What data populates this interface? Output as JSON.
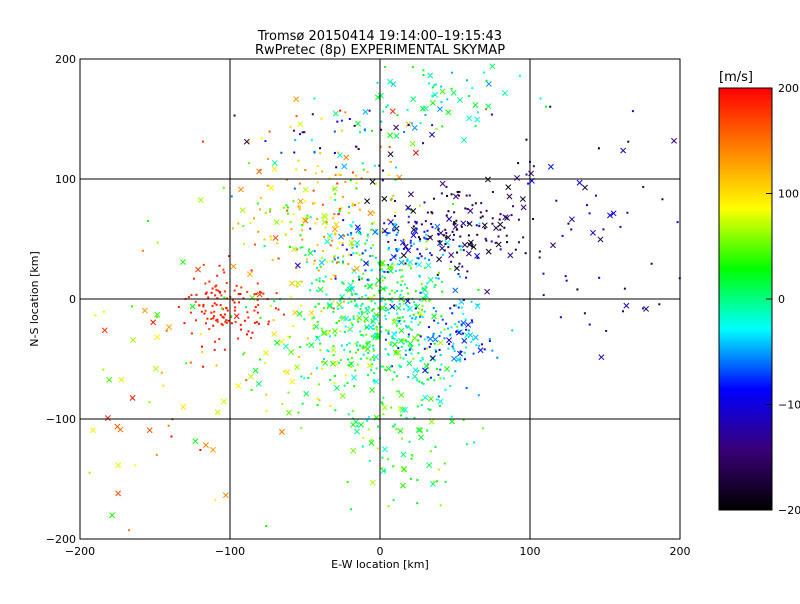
{
  "chart_data": {
    "type": "scatter",
    "title": "Tromsø 20150414 19:14:00–19:15:43",
    "subtitle": "RwPretec (8p) EXPERIMENTAL SKYMAP",
    "xlabel": "E-W location [km]",
    "ylabel": "N-S location [km]",
    "xlim": [
      -200,
      200
    ],
    "ylim": [
      -200,
      200
    ],
    "x_ticks": [
      -200,
      -100,
      0,
      100,
      200
    ],
    "y_ticks": [
      -200,
      -100,
      0,
      100,
      200
    ],
    "x_tick_labels": [
      "−200",
      "−100",
      "0",
      "100",
      "200"
    ],
    "y_tick_labels": [
      "−200",
      "−100",
      "0",
      "100",
      "200"
    ],
    "grid": true,
    "colorbar": {
      "unit": "[m/s]",
      "range": [
        -200,
        200
      ],
      "ticks": [
        200,
        100,
        0,
        -100,
        -200
      ],
      "tick_labels": [
        "200",
        "100",
        "0",
        "−100",
        "−200"
      ],
      "colors": [
        "#000000",
        "#3a0078",
        "#0000ff",
        "#00ffff",
        "#00ff00",
        "#ffff00",
        "#ff8000",
        "#ff0000"
      ]
    },
    "clusters": [
      {
        "x": 0,
        "y": -10,
        "sx": 25,
        "sy": 30,
        "n": 420,
        "vmin": -40,
        "vmax": 60,
        "cross_frac": 0.15
      },
      {
        "x": 40,
        "y": -30,
        "sx": 20,
        "sy": 20,
        "n": 120,
        "vmin": -110,
        "vmax": -20,
        "cross_frac": 0.15
      },
      {
        "x": 50,
        "y": 55,
        "sx": 25,
        "sy": 20,
        "n": 140,
        "vmin": -200,
        "vmax": -120,
        "cross_frac": 0.3
      },
      {
        "x": 5,
        "y": 45,
        "sx": 25,
        "sy": 15,
        "n": 110,
        "vmin": -100,
        "vmax": -20,
        "cross_frac": 0.2
      },
      {
        "x": -100,
        "y": -5,
        "sx": 15,
        "sy": 15,
        "n": 130,
        "vmin": 170,
        "vmax": 200,
        "cross_frac": 0.05
      },
      {
        "x": -40,
        "y": 60,
        "sx": 30,
        "sy": 25,
        "n": 170,
        "vmin": 30,
        "vmax": 170,
        "cross_frac": 0.15
      },
      {
        "x": -20,
        "y": 130,
        "sx": 35,
        "sy": 20,
        "n": 90,
        "vmin": -200,
        "vmax": 200,
        "cross_frac": 0.25
      },
      {
        "x": 40,
        "y": 170,
        "sx": 30,
        "sy": 20,
        "n": 70,
        "vmin": -60,
        "vmax": 40,
        "cross_frac": 0.4
      },
      {
        "x": 10,
        "y": -100,
        "sx": 25,
        "sy": 40,
        "n": 130,
        "vmin": -20,
        "vmax": 70,
        "cross_frac": 0.3
      },
      {
        "x": 130,
        "y": 60,
        "sx": 40,
        "sy": 50,
        "n": 70,
        "vmin": -200,
        "vmax": -80,
        "cross_frac": 0.3
      },
      {
        "x": -140,
        "y": -80,
        "sx": 40,
        "sy": 70,
        "n": 70,
        "vmin": 20,
        "vmax": 200,
        "cross_frac": 0.55
      },
      {
        "x": -50,
        "y": -40,
        "sx": 30,
        "sy": 30,
        "n": 100,
        "vmin": 0,
        "vmax": 120,
        "cross_frac": 0.3
      }
    ]
  }
}
